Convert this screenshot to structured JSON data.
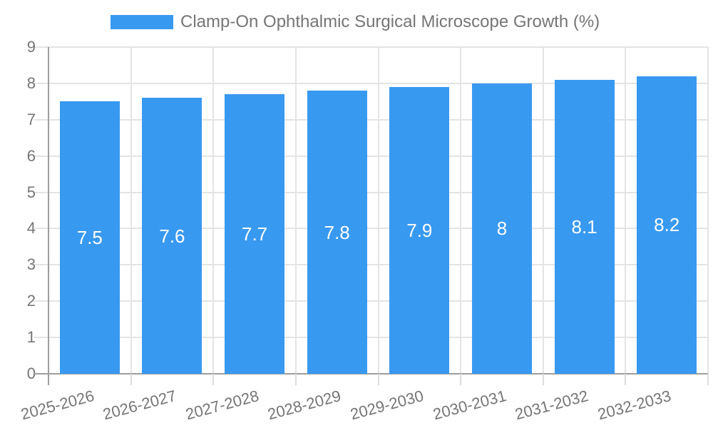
{
  "chart_data": {
    "type": "bar",
    "title": "Clamp-On Ophthalmic Surgical Microscope Growth (%)",
    "legend_position": "top",
    "categories": [
      "2025-2026",
      "2026-2027",
      "2027-2028",
      "2028-2029",
      "2029-2030",
      "2030-2031",
      "2031-2032",
      "2032-2033"
    ],
    "series": [
      {
        "name": "Clamp-On Ophthalmic Surgical Microscope Growth (%)",
        "values": [
          7.5,
          7.6,
          7.7,
          7.8,
          7.9,
          8,
          8.1,
          8.2
        ],
        "value_labels": [
          "7.5",
          "7.6",
          "7.7",
          "7.8",
          "7.9",
          "8",
          "8.1",
          "8.2"
        ]
      }
    ],
    "xlabel": "",
    "ylabel": "",
    "ylim": [
      0,
      9
    ],
    "y_ticks": [
      0,
      1,
      2,
      3,
      4,
      5,
      6,
      7,
      8,
      9
    ],
    "grid": true,
    "colors": {
      "bar": "#3899F0",
      "axis_line": "#9e9e9e",
      "grid_line": "#e4e4e4",
      "tick_line": "#dcdcdc",
      "label_text": "#757575",
      "bar_label_text": "#ffffff",
      "background": "#ffffff"
    }
  }
}
